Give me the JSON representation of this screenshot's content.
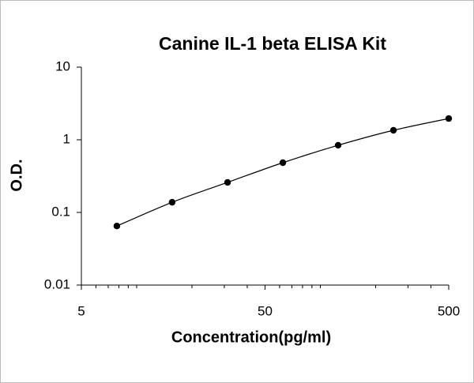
{
  "chart_data": {
    "type": "scatter",
    "title": "Canine IL-1 beta ELISA Kit",
    "x_label": "Concentration(pg/ml)",
    "y_label": "O.D.",
    "x": [
      7.8,
      15.6,
      31.25,
      62.5,
      125,
      250,
      500
    ],
    "series": [
      {
        "color": "#000000",
        "values": [
          0.065,
          0.138,
          0.259,
          0.484,
          0.84,
          1.35,
          1.96
        ]
      }
    ],
    "xlim": [
      5,
      500
    ],
    "xticks": [
      5,
      50,
      500
    ],
    "ylim": [
      0.01,
      10
    ],
    "yticks": [
      0.01,
      0.1,
      1,
      10
    ],
    "x_log": true,
    "y_log": true,
    "grid": false
  }
}
